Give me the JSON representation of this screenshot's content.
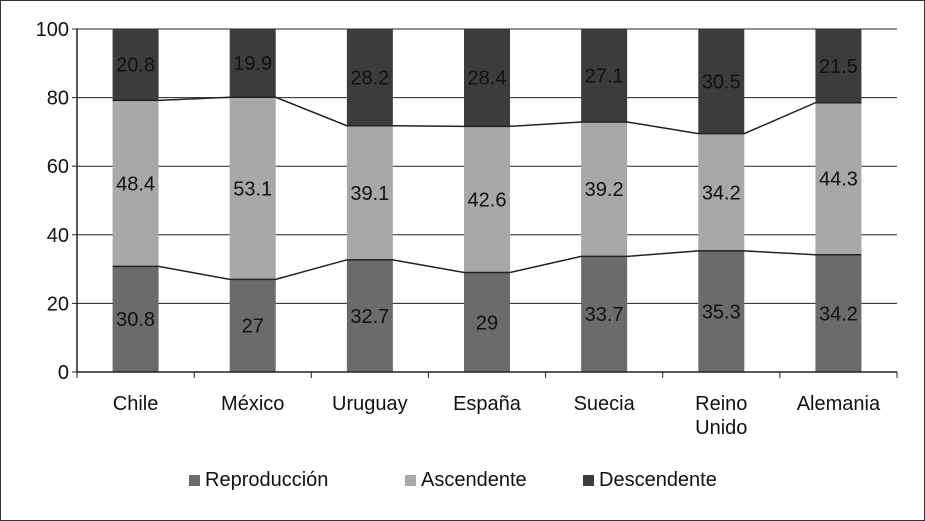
{
  "chart_data": {
    "type": "bar",
    "stacked": true,
    "categories": [
      "Chile",
      "México",
      "Uruguay",
      "España",
      "Suecia",
      "Reino Unido",
      "Alemania"
    ],
    "category_lines": [
      [
        "Chile"
      ],
      [
        "México"
      ],
      [
        "Uruguay"
      ],
      [
        "España"
      ],
      [
        "Suecia"
      ],
      [
        "Reino",
        "Unido"
      ],
      [
        "Alemania"
      ]
    ],
    "series": [
      {
        "name": "Reproducción",
        "values": [
          30.8,
          27,
          32.7,
          29,
          33.7,
          35.3,
          34.2
        ],
        "labels": [
          "30.8",
          "27",
          "32.7",
          "29",
          "33.7",
          "35.3",
          "34.2"
        ],
        "color": "#6b6b6b"
      },
      {
        "name": "Ascendente",
        "values": [
          48.4,
          53.1,
          39.1,
          42.6,
          39.2,
          34.2,
          44.3
        ],
        "labels": [
          "48.4",
          "53.1",
          "39.1",
          "42.6",
          "39.2",
          "34.2",
          "44.3"
        ],
        "color": "#a8a8a8"
      },
      {
        "name": "Descendente",
        "values": [
          20.8,
          19.9,
          28.2,
          28.4,
          27.1,
          30.5,
          21.5
        ],
        "labels": [
          "20.8",
          "19.9",
          "28.2",
          "28.4",
          "27.1",
          "30.5",
          "21.5"
        ],
        "color": "#3c3c3c"
      }
    ],
    "series_lines": "connecting lines between series boundaries across bars",
    "ylim": [
      0,
      100
    ],
    "yticks": [
      0,
      20,
      40,
      60,
      80,
      100
    ],
    "ytick_labels": [
      "0",
      "20",
      "40",
      "60",
      "80",
      "100"
    ],
    "grid": true,
    "legend": "bottom",
    "title": "",
    "xlabel": "",
    "ylabel": ""
  }
}
